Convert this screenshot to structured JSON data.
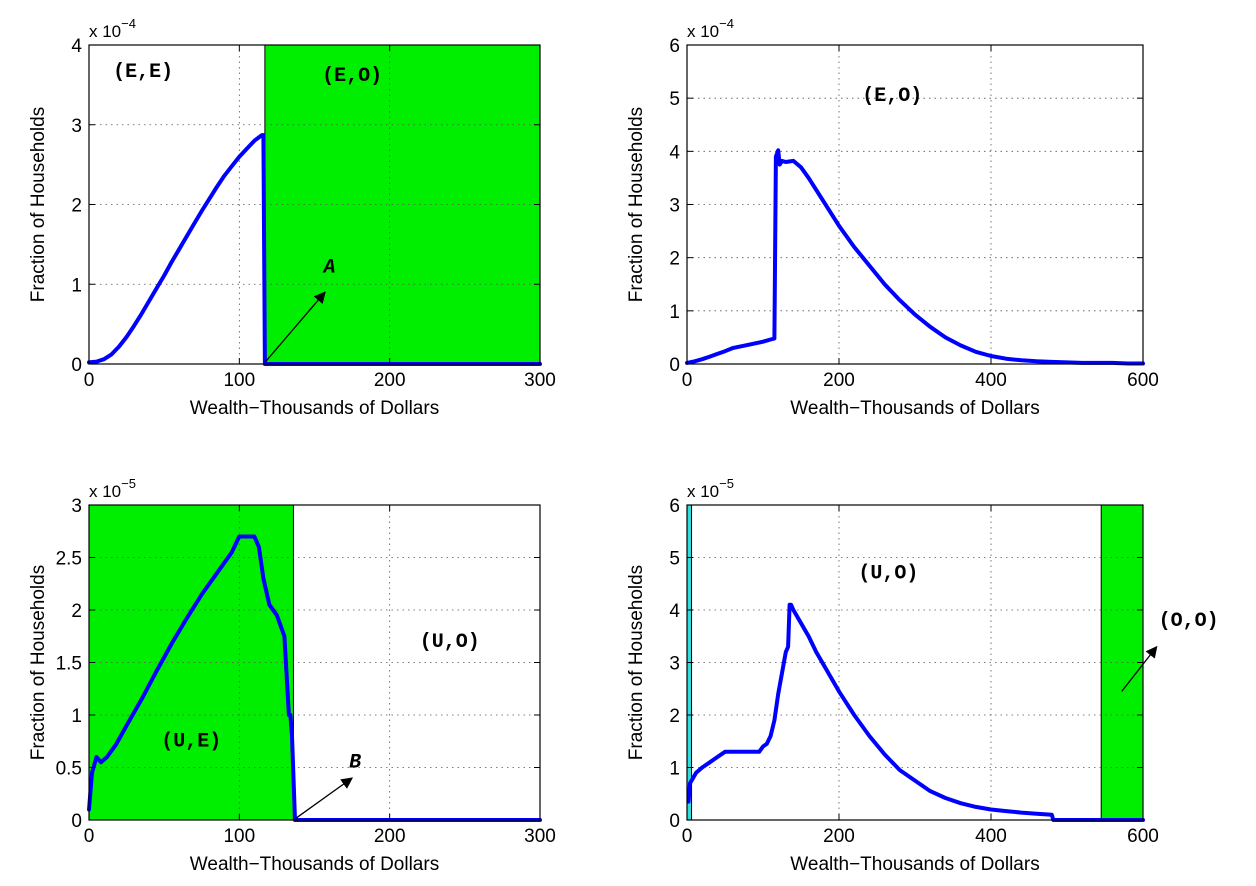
{
  "chart_data": [
    {
      "type": "line",
      "xlabel": "Wealth−Thousands of Dollars",
      "ylabel": "Fraction of Households",
      "exponent": [
        "x 10",
        "−4"
      ],
      "xlim": [
        0,
        300
      ],
      "ylim": [
        0,
        4
      ],
      "xticks": [
        0,
        100,
        200,
        300
      ],
      "yticks": [
        0,
        1,
        2,
        3,
        4
      ],
      "grid": true,
      "shaded": [
        {
          "x0": 117,
          "x1": 300,
          "color": "#00ee00"
        }
      ],
      "regions": [
        {
          "label": "(E,E)",
          "x": 36,
          "y": 3.6
        },
        {
          "label": "(E,O)",
          "x": 175,
          "y": 3.55
        }
      ],
      "annotations": [
        {
          "label": "A",
          "text_x": 160,
          "text_y": 1.15,
          "arrow_from": [
            117,
            0.02
          ],
          "arrow_to": [
            157,
            0.9
          ]
        }
      ],
      "series": [
        {
          "color": "#0000ff",
          "x": [
            0,
            5,
            10,
            15,
            20,
            25,
            30,
            35,
            40,
            45,
            50,
            55,
            60,
            65,
            70,
            75,
            80,
            85,
            90,
            95,
            100,
            105,
            110,
            115,
            116,
            117,
            120,
            150,
            200,
            250,
            300
          ],
          "y": [
            0.02,
            0.03,
            0.06,
            0.12,
            0.22,
            0.34,
            0.48,
            0.63,
            0.79,
            0.95,
            1.11,
            1.28,
            1.44,
            1.6,
            1.76,
            1.92,
            2.07,
            2.22,
            2.36,
            2.48,
            2.6,
            2.7,
            2.8,
            2.87,
            2.87,
            0,
            0,
            0,
            0,
            0,
            0
          ]
        }
      ]
    },
    {
      "type": "line",
      "xlabel": "Wealth−Thousands of Dollars",
      "ylabel": "Fraction of Households",
      "exponent": [
        "x 10",
        "−4"
      ],
      "xlim": [
        0,
        600
      ],
      "ylim": [
        0,
        6
      ],
      "xticks": [
        0,
        200,
        400,
        600
      ],
      "yticks": [
        0,
        1,
        2,
        3,
        4,
        5,
        6
      ],
      "grid": true,
      "shaded": [],
      "regions": [
        {
          "label": "(E,O)",
          "x": 270,
          "y": 4.95
        }
      ],
      "annotations": [],
      "series": [
        {
          "color": "#0000ff",
          "x": [
            0,
            10,
            20,
            30,
            40,
            50,
            60,
            80,
            100,
            110,
            115,
            117,
            120,
            122,
            125,
            130,
            140,
            150,
            160,
            180,
            200,
            220,
            240,
            260,
            280,
            300,
            320,
            340,
            360,
            380,
            400,
            420,
            440,
            460,
            480,
            500,
            520,
            540,
            560,
            580,
            600
          ],
          "y": [
            0.02,
            0.05,
            0.09,
            0.14,
            0.19,
            0.24,
            0.3,
            0.36,
            0.42,
            0.46,
            0.48,
            3.9,
            4.02,
            3.75,
            3.82,
            3.8,
            3.82,
            3.7,
            3.5,
            3.05,
            2.6,
            2.2,
            1.85,
            1.5,
            1.2,
            0.93,
            0.7,
            0.5,
            0.35,
            0.23,
            0.15,
            0.1,
            0.07,
            0.05,
            0.04,
            0.03,
            0.02,
            0.02,
            0.02,
            0.01,
            0.01
          ]
        }
      ]
    },
    {
      "type": "line",
      "xlabel": "Wealth−Thousands of Dollars",
      "ylabel": "Fraction of Households",
      "exponent": [
        "x 10",
        "−5"
      ],
      "xlim": [
        0,
        300
      ],
      "ylim": [
        0,
        3
      ],
      "xticks": [
        0,
        100,
        200,
        300
      ],
      "yticks": [
        0,
        0.5,
        1,
        1.5,
        2,
        2.5,
        3
      ],
      "grid": true,
      "shaded": [
        {
          "x0": 0,
          "x1": 136,
          "color": "#00ee00"
        }
      ],
      "regions": [
        {
          "label": "(U,E)",
          "x": 68,
          "y": 0.7
        },
        {
          "label": "(U,O)",
          "x": 240,
          "y": 1.65
        }
      ],
      "annotations": [
        {
          "label": "B",
          "text_x": 177,
          "text_y": 0.5,
          "arrow_from": [
            137,
            0.01
          ],
          "arrow_to": [
            175,
            0.4
          ]
        }
      ],
      "series": [
        {
          "color": "#0000ff",
          "x": [
            0,
            2,
            5,
            8,
            12,
            18,
            25,
            35,
            45,
            55,
            65,
            75,
            85,
            95,
            100,
            105,
            110,
            113,
            116,
            120,
            125,
            130,
            133,
            134,
            135,
            137,
            140,
            150,
            200,
            250,
            300
          ],
          "y": [
            0.1,
            0.45,
            0.6,
            0.55,
            0.6,
            0.72,
            0.9,
            1.15,
            1.42,
            1.68,
            1.92,
            2.15,
            2.35,
            2.55,
            2.7,
            2.7,
            2.7,
            2.6,
            2.3,
            2.05,
            1.95,
            1.75,
            1.0,
            1.0,
            0.8,
            0,
            0,
            0,
            0,
            0,
            0
          ]
        }
      ]
    },
    {
      "type": "line",
      "xlabel": "Wealth−Thousands of Dollars",
      "ylabel": "Fraction of Households",
      "exponent": [
        "x 10",
        "−5"
      ],
      "xlim": [
        0,
        600
      ],
      "ylim": [
        0,
        6
      ],
      "xticks": [
        0,
        200,
        400,
        600
      ],
      "yticks": [
        0,
        1,
        2,
        3,
        4,
        5,
        6
      ],
      "grid": true,
      "shaded": [
        {
          "x0": 0,
          "x1": 6,
          "color": "#33dddd"
        },
        {
          "x0": 545,
          "x1": 600,
          "color": "#00ee00"
        }
      ],
      "regions": [
        {
          "label": "(U,O)",
          "x": 265,
          "y": 4.6
        },
        {
          "label": "(O,O)",
          "x": 660,
          "y": 3.7
        }
      ],
      "annotations": [
        {
          "label": "",
          "text_x": 0,
          "text_y": 0,
          "arrow_from": [
            572,
            2.45
          ],
          "arrow_to": [
            618,
            3.3
          ]
        }
      ],
      "series": [
        {
          "color": "#0000ff",
          "x": [
            2,
            4,
            8,
            12,
            20,
            30,
            40,
            50,
            60,
            80,
            95,
            100,
            105,
            110,
            115,
            120,
            125,
            130,
            133,
            135,
            137,
            140,
            150,
            160,
            170,
            180,
            200,
            220,
            240,
            260,
            280,
            300,
            320,
            340,
            360,
            380,
            400,
            420,
            440,
            460,
            480,
            482,
            500,
            545,
            600
          ],
          "y": [
            0.35,
            0.7,
            0.8,
            0.9,
            1.0,
            1.1,
            1.2,
            1.3,
            1.3,
            1.3,
            1.3,
            1.4,
            1.45,
            1.6,
            1.9,
            2.4,
            2.8,
            3.2,
            3.3,
            4.1,
            4.1,
            4.0,
            3.75,
            3.5,
            3.2,
            2.95,
            2.45,
            2.0,
            1.6,
            1.25,
            0.95,
            0.75,
            0.55,
            0.42,
            0.32,
            0.25,
            0.2,
            0.17,
            0.14,
            0.12,
            0.1,
            0,
            0,
            0,
            0
          ]
        }
      ]
    }
  ]
}
